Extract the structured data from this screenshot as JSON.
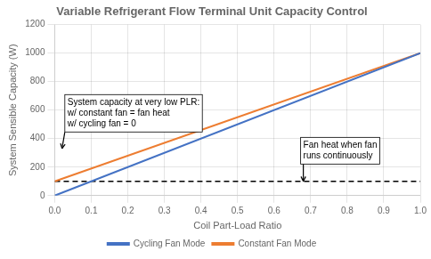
{
  "chart_data": {
    "type": "line",
    "title": "Variable Refrigerant Flow Terminal Unit Capacity Control",
    "x_label": "Coil Part-Load Ratio",
    "y_label": "System Sensible Capacity (W)",
    "x": [
      0,
      1
    ],
    "series": [
      {
        "name": "Cycling Fan Mode",
        "color": "#4472C4",
        "values": [
          0,
          1000
        ]
      },
      {
        "name": "Constant Fan Mode",
        "color": "#ED7D31",
        "values": [
          100,
          1000
        ]
      }
    ],
    "hlines": [
      {
        "value": 100,
        "color": "black",
        "line_style": "dashed"
      }
    ],
    "xlim": [
      0,
      1
    ],
    "ylim": [
      0,
      1200
    ],
    "xticks": [
      {
        "value": 0,
        "label": "0.0"
      },
      0.1,
      0.2,
      0.3,
      0.4,
      0.5,
      0.6,
      0.7,
      0.8,
      0.9,
      {
        "value": 1,
        "label": "1.0"
      }
    ],
    "yticks": [
      0,
      200,
      400,
      600,
      800,
      1000,
      1200
    ],
    "grid": true,
    "legend": "bottom",
    "annotations": [
      {
        "text": "System capacity at very low PLR:\nw/ constant fan = fan heat\nw/ cycling fan = 0",
        "xy": [
          0.02,
          330
        ],
        "xytext": [
          0.035,
          690
        ]
      },
      {
        "text": "Fan heat when fan\nruns continuously",
        "xy": [
          0.68,
          100
        ],
        "xytext": [
          0.68,
          390
        ]
      }
    ]
  }
}
